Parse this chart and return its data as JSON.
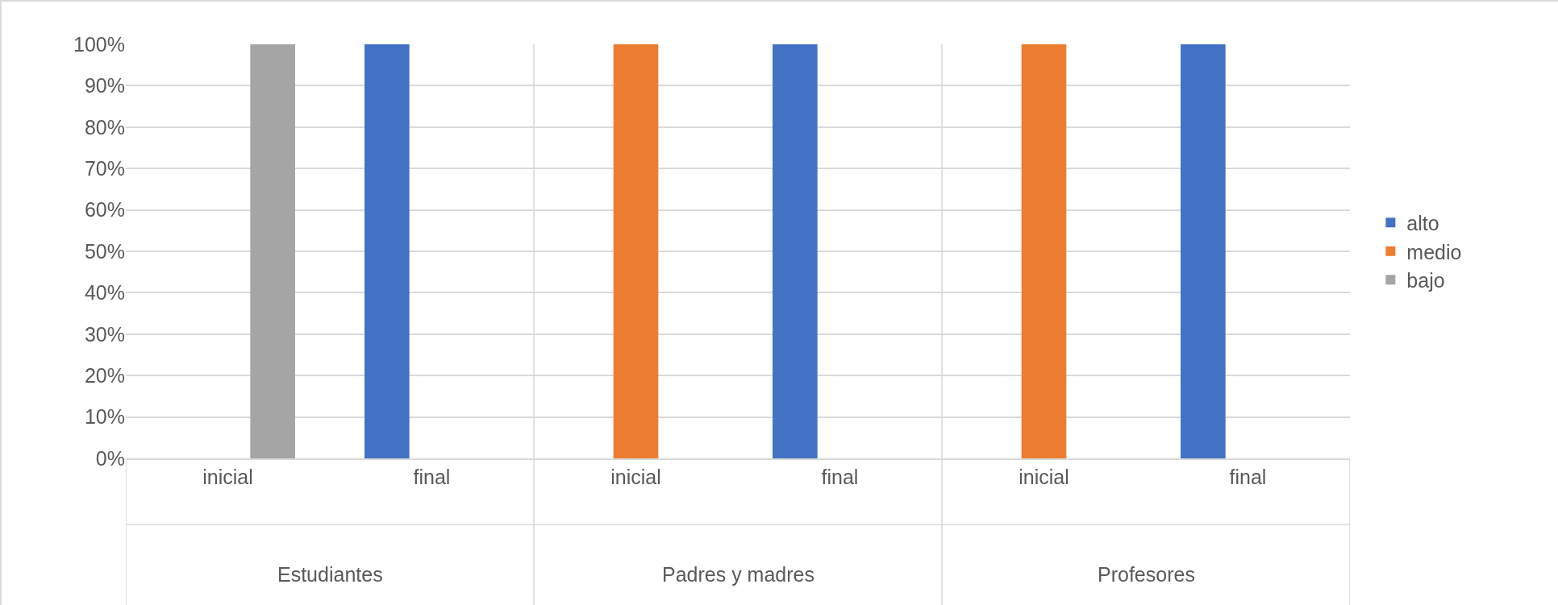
{
  "chart_data": {
    "type": "bar",
    "categories": [
      "inicial",
      "final",
      "inicial",
      "final",
      "inicial",
      "final"
    ],
    "series": [
      {
        "name": "alto",
        "color": "#4472c4",
        "values": [
          0,
          100,
          0,
          100,
          0,
          100
        ]
      },
      {
        "name": "medio",
        "color": "#ed7d31",
        "values": [
          0,
          0,
          100,
          0,
          100,
          0
        ]
      },
      {
        "name": "bajo",
        "color": "#a5a5a5",
        "values": [
          100,
          0,
          0,
          0,
          0,
          0
        ]
      }
    ],
    "annotations": [
      "Estudiantes",
      "Padres y madres",
      "Profesores"
    ],
    "ylim": [
      0,
      100
    ],
    "yticks": [
      {
        "value": 0,
        "label": "0%"
      },
      {
        "value": 10,
        "label": "10%"
      },
      {
        "value": 20,
        "label": "20%"
      },
      {
        "value": 30,
        "label": "30%"
      },
      {
        "value": 40,
        "label": "40%"
      },
      {
        "value": 50,
        "label": "50%"
      },
      {
        "value": 60,
        "label": "60%"
      },
      {
        "value": 70,
        "label": "70%"
      },
      {
        "value": 80,
        "label": "80%"
      },
      {
        "value": 90,
        "label": "90%"
      },
      {
        "value": 100,
        "label": "100%"
      }
    ],
    "grid": "y",
    "legend": "right"
  }
}
